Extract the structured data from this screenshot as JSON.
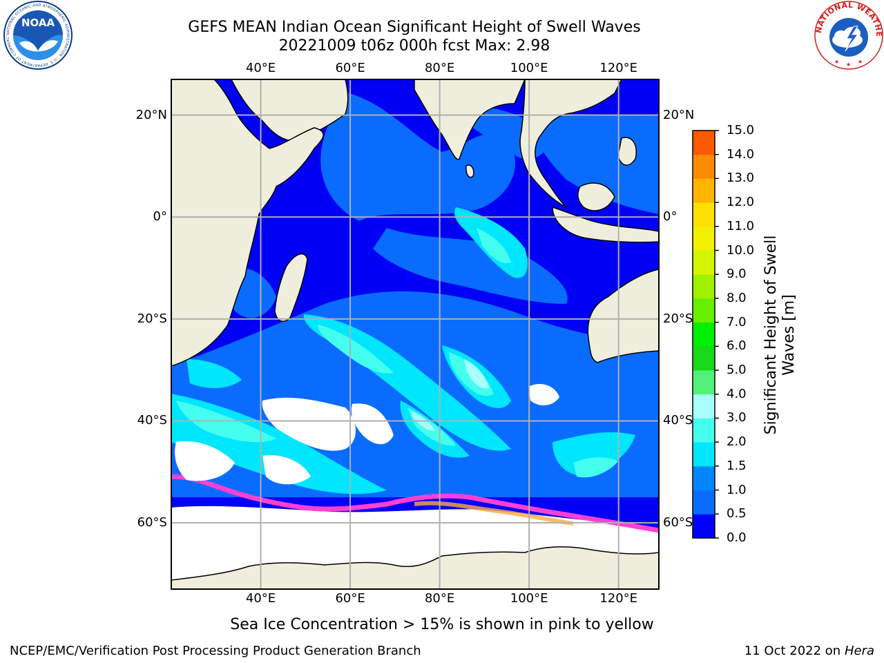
{
  "header": {
    "title_line1": "GEFS MEAN Indian Ocean Significant Height of Swell Waves",
    "title_line2": "20221009 t06z 000h fcst   Max: 2.98"
  },
  "logos": {
    "noaa_text": "NOAA",
    "noaa_ring_text": "NATIONAL OCEANIC AND ATMOSPHERIC ADMINISTRATION · U.S. DEPARTMENT OF COMMERCE",
    "nws_ring_text": "NATIONAL WEATHER SERVICE"
  },
  "axes": {
    "lon_ticks": [
      "40°E",
      "60°E",
      "80°E",
      "100°E",
      "120°E"
    ],
    "lat_ticks": [
      "20°N",
      "0°",
      "20°S",
      "40°S",
      "60°S"
    ]
  },
  "colorbar": {
    "label_line1": "Significant Height of Swell",
    "label_line2": "Waves [m]",
    "ticks": [
      "0.0",
      "0.5",
      "1.0",
      "1.5",
      "2.0",
      "3.0",
      "4.0",
      "5.0",
      "6.0",
      "7.0",
      "8.0",
      "9.0",
      "10.0",
      "11.0",
      "12.0",
      "13.0",
      "14.0",
      "15.0"
    ],
    "colors": [
      "#0000ff",
      "#0a6cff",
      "#0087ff",
      "#00e6ff",
      "#44ffee",
      "#a8fffc",
      "#55f07a",
      "#19d819",
      "#00ee00",
      "#66ee00",
      "#a0f000",
      "#d4f500",
      "#f0f000",
      "#ffe000",
      "#ffb400",
      "#ff8c00",
      "#ff5a00",
      "#ff2200",
      "#ff0000"
    ]
  },
  "footer": {
    "sea_ice_note": "Sea Ice Concentration > 15% is shown in pink to yellow",
    "credit": "NCEP/EMC/Verification Post Processing Product Generation Branch",
    "date_prefix": "11 Oct 2022 on ",
    "date_machine": "Hera"
  }
}
